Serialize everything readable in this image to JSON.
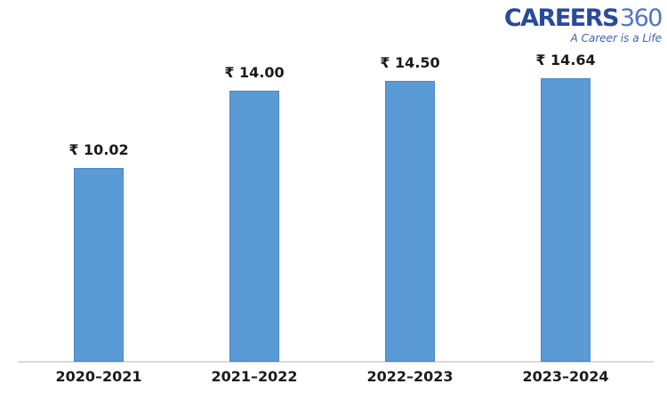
{
  "logo": {
    "brand_bold": "CAREERS",
    "brand_light": "360",
    "tagline": "A Career is a Life",
    "brand_bold_color": "#2a4a99",
    "brand_light_color": "#5474c1",
    "tagline_color": "#3d64ae"
  },
  "chart_data": {
    "type": "bar",
    "categories": [
      "2020–2021",
      "2021–2022",
      "2022–2023",
      "2023–2024"
    ],
    "values": [
      10.02,
      14.0,
      14.5,
      14.64
    ],
    "value_labels": [
      "₹ 10.02",
      "₹ 14.00",
      "₹ 14.50",
      "₹ 14.64"
    ],
    "title": "",
    "xlabel": "",
    "ylabel": "",
    "ylim": [
      0,
      16
    ],
    "grid": false,
    "legend": false,
    "bar_color": "#5B9BD5",
    "bar_border_color": "#4A86C5",
    "axis_line_color": "#D9D9D9",
    "label_color": "#1a1a1a"
  }
}
